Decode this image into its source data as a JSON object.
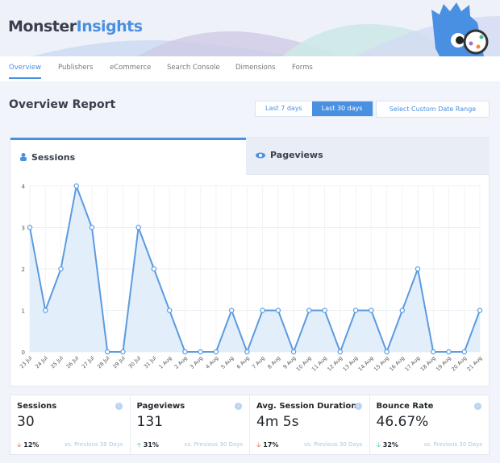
{
  "brand": {
    "part1": "Monster",
    "part2": "Insights"
  },
  "nav": [
    "Overview",
    "Publishers",
    "eCommerce",
    "Search Console",
    "Dimensions",
    "Forms"
  ],
  "page_title": "Overview Report",
  "date_buttons": {
    "last7": "Last 7 days",
    "last30": "Last 30 days",
    "custom": "Select Custom Date Range"
  },
  "tabs": {
    "sessions": "Sessions",
    "pageviews": "Pageviews"
  },
  "colors": {
    "accent": "#4a90e2",
    "down": "#d54e21",
    "up": "#3fbf96"
  },
  "chart_data": {
    "type": "area",
    "ylim": [
      0,
      4
    ],
    "yticks": [
      "0",
      "1",
      "2",
      "3",
      "4"
    ],
    "categories": [
      "23 Jul",
      "24 Jul",
      "25 Jul",
      "26 Jul",
      "27 Jul",
      "28 Jul",
      "29 Jul",
      "30 Jul",
      "31 Jul",
      "1 Aug",
      "2 Aug",
      "3 Aug",
      "4 Aug",
      "5 Aug",
      "6 Aug",
      "7 Aug",
      "8 Aug",
      "9 Aug",
      "10 Aug",
      "11 Aug",
      "12 Aug",
      "13 Aug",
      "14 Aug",
      "15 Aug",
      "16 Aug",
      "17 Aug",
      "18 Aug",
      "19 Aug",
      "20 Aug",
      "21 Aug"
    ],
    "values": [
      3,
      1,
      2,
      4,
      3,
      0,
      0,
      3,
      2,
      1,
      0,
      0,
      0,
      1,
      0,
      1,
      1,
      0,
      1,
      1,
      0,
      1,
      1,
      0,
      1,
      2,
      0,
      0,
      0,
      1
    ]
  },
  "stats": [
    {
      "label": "Sessions",
      "value": "30",
      "change": "12%",
      "dir": "down",
      "compare": "vs. Previous 30 Days"
    },
    {
      "label": "Pageviews",
      "value": "131",
      "change": "31%",
      "dir": "up",
      "compare": "vs. Previous 30 Days"
    },
    {
      "label": "Avg. Session Duration",
      "value": "4m 5s",
      "change": "17%",
      "dir": "down",
      "compare": "vs. Previous 30 Days"
    },
    {
      "label": "Bounce Rate",
      "value": "46.67%",
      "change": "32%",
      "dir": "down-good",
      "compare": "vs. Previous 30 Days"
    }
  ]
}
